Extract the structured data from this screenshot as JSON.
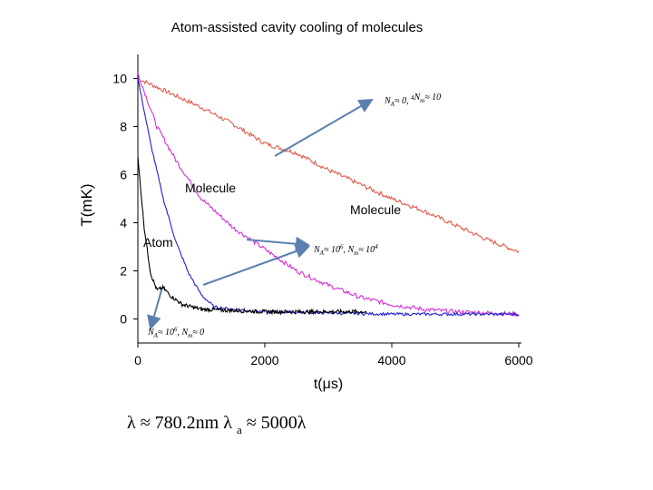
{
  "chart_data": {
    "type": "line",
    "title": "Atom-assisted cavity cooling of molecules",
    "xlabel": "t(μs)",
    "ylabel": "T(mK)",
    "xlim": [
      0,
      6000
    ],
    "ylim": [
      -1,
      11
    ],
    "xticks": [
      "0",
      "2000",
      "4000",
      "6000"
    ],
    "yticks": [
      "0",
      "2",
      "4",
      "6",
      "8",
      "10"
    ],
    "grid": false,
    "series": [
      {
        "label": "N_A ≈ 0, N_m ≈ 10^4",
        "color": "#e05a4a",
        "noise": 0.09,
        "x": [
          0,
          500,
          1000,
          1500,
          2000,
          2500,
          3000,
          3500,
          4000,
          4500,
          5000,
          5500,
          6000
        ],
        "y": [
          10.0,
          9.4,
          8.8,
          8.1,
          7.3,
          6.9,
          6.2,
          5.6,
          5.0,
          4.5,
          3.9,
          3.3,
          2.8
        ]
      },
      {
        "label": "N_A ≈ 10^6, N_m ≈ 10^4 (Molecule)",
        "color": "#d62fd6",
        "noise": 0.09,
        "x": [
          0,
          300,
          600,
          1000,
          1500,
          2000,
          2500,
          3000,
          3500,
          4000,
          4500,
          5000,
          5500,
          6000
        ],
        "y": [
          10.2,
          8.0,
          6.6,
          5.0,
          3.8,
          2.9,
          2.0,
          1.4,
          0.9,
          0.6,
          0.4,
          0.3,
          0.25,
          0.2
        ]
      },
      {
        "label": "N_A ≈ 10^6, N_m ≈ 10^4 (Atom)",
        "color": "#1f1fd6",
        "noise": 0.06,
        "x": [
          0,
          200,
          400,
          600,
          800,
          1000,
          1200,
          1500,
          2000,
          3000,
          4000,
          5000,
          6000
        ],
        "y": [
          10.0,
          7.3,
          5.0,
          3.2,
          1.9,
          1.0,
          0.5,
          0.4,
          0.3,
          0.25,
          0.2,
          0.2,
          0.2
        ]
      },
      {
        "label": "N_A ≈ 10^6, N_m ≈ 0",
        "color": "#000000",
        "noise": 0.08,
        "x": [
          0,
          100,
          200,
          300,
          400,
          500,
          700,
          1000,
          1500,
          2000,
          2500,
          3000,
          3600
        ],
        "y": [
          6.7,
          3.8,
          1.9,
          1.2,
          1.3,
          1.0,
          0.6,
          0.4,
          0.35,
          0.3,
          0.3,
          0.3,
          0.3
        ]
      }
    ],
    "annotations": [
      {
        "text": "Molecule",
        "kind": "label"
      },
      {
        "text": "Molecule",
        "kind": "label"
      },
      {
        "text": "Atom",
        "kind": "label"
      },
      {
        "text": "N",
        "sub": "A",
        "rest": "≈ 0, ",
        "text2": "N",
        "sub2": "m",
        "rest2": "≈ 10",
        "sup": "4"
      },
      {
        "text": "N",
        "sub": "A",
        "rest": "≈ 10",
        "sup": "6",
        "rest_b": ", ",
        "text2": "N",
        "sub2": "m",
        "rest2": "≈ 10",
        "sup2": "4"
      },
      {
        "text": "N",
        "sub": "A",
        "rest": "≈ 10",
        "sup": "6",
        "rest_b": ", ",
        "text2": "N",
        "sub2": "m",
        "rest2": "≈ 0"
      }
    ],
    "caption": {
      "pre": "λ ≈ 780.2nm  λ",
      "sub": "a",
      "post": " ≈ 5000λ"
    }
  }
}
